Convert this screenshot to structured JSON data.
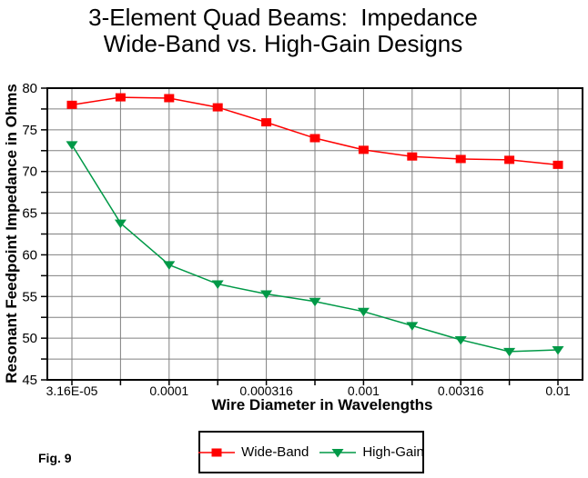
{
  "title": {
    "line1": "3-Element Quad Beams:  Impedance",
    "line2": "Wide-Band vs. High-Gain Designs"
  },
  "figure_label": "Fig. 9",
  "chart_data": {
    "type": "line",
    "title": "3-Element Quad Beams: Impedance Wide-Band vs. High-Gain Designs",
    "xlabel": "Wire Diameter in Wavelengths",
    "ylabel": "Resonant Feedpoint Impedance in Ohms",
    "x_scale": "log",
    "x_values": [
      3.16e-05,
      5.62e-05,
      0.0001,
      0.000178,
      0.000316,
      0.000562,
      0.001,
      0.00178,
      0.00316,
      0.00562,
      0.01
    ],
    "x_tick_labels": [
      {
        "index": 0,
        "label": "3.16E-05"
      },
      {
        "index": 2,
        "label": "0.0001"
      },
      {
        "index": 4,
        "label": "0.000316"
      },
      {
        "index": 6,
        "label": "0.001"
      },
      {
        "index": 8,
        "label": "0.00316"
      },
      {
        "index": 10,
        "label": "0.01"
      }
    ],
    "ylim": [
      45,
      80
    ],
    "y_major_ticks": [
      45,
      50,
      55,
      60,
      65,
      70,
      75,
      80
    ],
    "y_grid_step": 2.5,
    "grid": true,
    "legend_position": "bottom",
    "series": [
      {
        "name": "Wide-Band",
        "color": "#FF0000",
        "marker": "square",
        "values": [
          78.0,
          78.9,
          78.8,
          77.7,
          75.9,
          74.0,
          72.6,
          71.8,
          71.5,
          71.4,
          70.8
        ]
      },
      {
        "name": "High-Gain",
        "color": "#009947",
        "marker": "triangle-down",
        "values": [
          73.2,
          63.8,
          58.8,
          56.5,
          55.3,
          54.4,
          53.2,
          51.5,
          49.8,
          48.4,
          48.6
        ]
      }
    ]
  },
  "colors": {
    "grid": "#808080",
    "frame": "#000000",
    "background": "#FFFFFF",
    "wide_band": "#FF0000",
    "high_gain": "#009947"
  }
}
